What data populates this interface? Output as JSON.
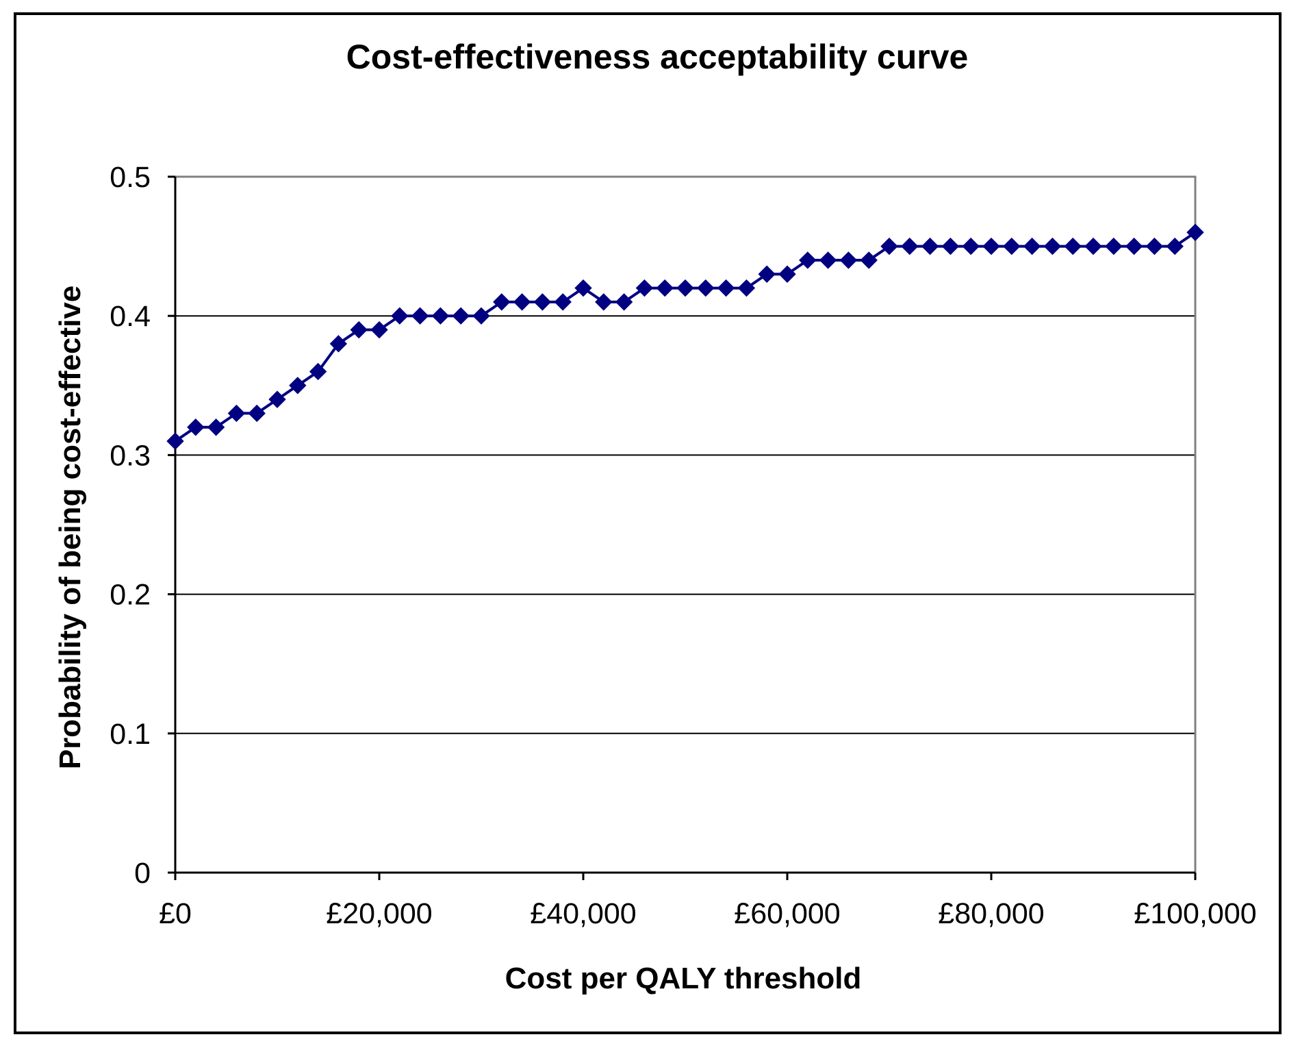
{
  "chart_data": {
    "type": "line",
    "title": "Cost-effectiveness acceptability curve",
    "xlabel": "Cost per QALY threshold",
    "ylabel": "Probability of being cost-effective",
    "xlim": [
      0,
      100000
    ],
    "ylim": [
      0,
      0.5
    ],
    "x_ticks": [
      0,
      20000,
      40000,
      60000,
      80000,
      100000
    ],
    "x_tick_labels": [
      "£0",
      "£20,000",
      "£40,000",
      "£60,000",
      "£80,000",
      "£100,000"
    ],
    "y_ticks": [
      0,
      0.1,
      0.2,
      0.3,
      0.4,
      0.5
    ],
    "y_tick_labels": [
      "0",
      "0.1",
      "0.2",
      "0.3",
      "0.4",
      "0.5"
    ],
    "grid": "horizontal",
    "legend": "none",
    "series": [
      {
        "name": "Probability of being cost-effective",
        "color": "#000080",
        "marker": "diamond",
        "x": [
          0,
          2000,
          4000,
          6000,
          8000,
          10000,
          12000,
          14000,
          16000,
          18000,
          20000,
          22000,
          24000,
          26000,
          28000,
          30000,
          32000,
          34000,
          36000,
          38000,
          40000,
          42000,
          44000,
          46000,
          48000,
          50000,
          52000,
          54000,
          56000,
          58000,
          60000,
          62000,
          64000,
          66000,
          68000,
          70000,
          72000,
          74000,
          76000,
          78000,
          80000,
          82000,
          84000,
          86000,
          88000,
          90000,
          92000,
          94000,
          96000,
          98000,
          100000
        ],
        "values": [
          0.31,
          0.32,
          0.32,
          0.33,
          0.33,
          0.34,
          0.35,
          0.36,
          0.38,
          0.39,
          0.39,
          0.4,
          0.4,
          0.4,
          0.4,
          0.4,
          0.41,
          0.41,
          0.41,
          0.41,
          0.42,
          0.41,
          0.41,
          0.42,
          0.42,
          0.42,
          0.42,
          0.42,
          0.42,
          0.43,
          0.43,
          0.44,
          0.44,
          0.44,
          0.44,
          0.45,
          0.45,
          0.45,
          0.45,
          0.45,
          0.45,
          0.45,
          0.45,
          0.45,
          0.45,
          0.45,
          0.45,
          0.45,
          0.45,
          0.45,
          0.46
        ]
      }
    ]
  }
}
